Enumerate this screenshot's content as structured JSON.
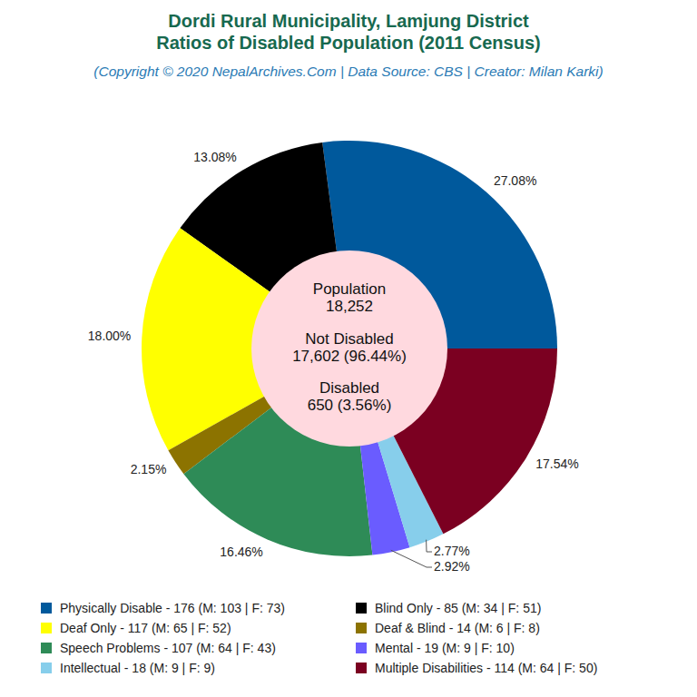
{
  "chart_data": {
    "type": "pie",
    "title": [
      "Dordi Rural Municipality, Lamjung District",
      "Ratios of Disabled Population (2011 Census)"
    ],
    "subtitle": "(Copyright © 2020 NepalArchives.Com | Data Source: CBS | Creator: Milan Karki)",
    "categories": [
      "Physically Disable - 176 (M: 103 | F: 73)",
      "Blind Only - 85 (M: 34 | F: 51)",
      "Deaf Only - 117 (M: 65 | F: 52)",
      "Deaf & Blind - 14 (M: 6 | F: 8)",
      "Speech Problems - 107 (M: 64 | F: 43)",
      "Mental - 19 (M: 9 | F: 10)",
      "Intellectual - 18 (M: 9 | F: 9)",
      "Multiple Disabilities - 114 (M: 64 | F: 50)"
    ],
    "values": [
      27.08,
      13.08,
      18.0,
      2.15,
      16.46,
      2.92,
      2.77,
      17.54
    ],
    "value_labels": [
      "27.08%",
      "13.08%",
      "18.00%",
      "2.15%",
      "16.46%",
      "2.92%",
      "2.77%",
      "17.54%"
    ],
    "colors": [
      "#00599c",
      "#000000",
      "#ffff00",
      "#8c7300",
      "#2e8b57",
      "#6a5cff",
      "#87ceeb",
      "#7b0021"
    ],
    "center_labels": [
      "Population",
      "18,252",
      "Not Disabled",
      "17,602 (96.44%)",
      "Disabled",
      "650 (3.56%)"
    ],
    "data_labels": true,
    "legend": "bottom"
  }
}
